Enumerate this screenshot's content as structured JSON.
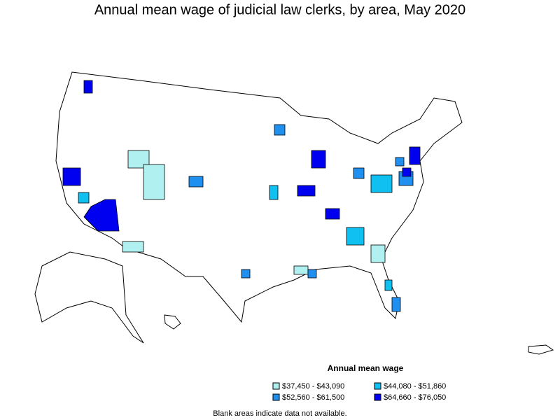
{
  "title": "Annual mean wage of judicial law clerks, by area, May 2020",
  "legend": {
    "title": "Annual mean wage",
    "items": [
      {
        "label": "$37,450 - $43,090",
        "color": "#b0f0f0"
      },
      {
        "label": "$44,080 - $51,860",
        "color": "#10c0f0"
      },
      {
        "label": "$52,560 - $61,500",
        "color": "#2090f0"
      },
      {
        "label": "$64,660 - $76,050",
        "color": "#0000f0"
      }
    ]
  },
  "footnote": "Blank areas indicate data not available."
}
